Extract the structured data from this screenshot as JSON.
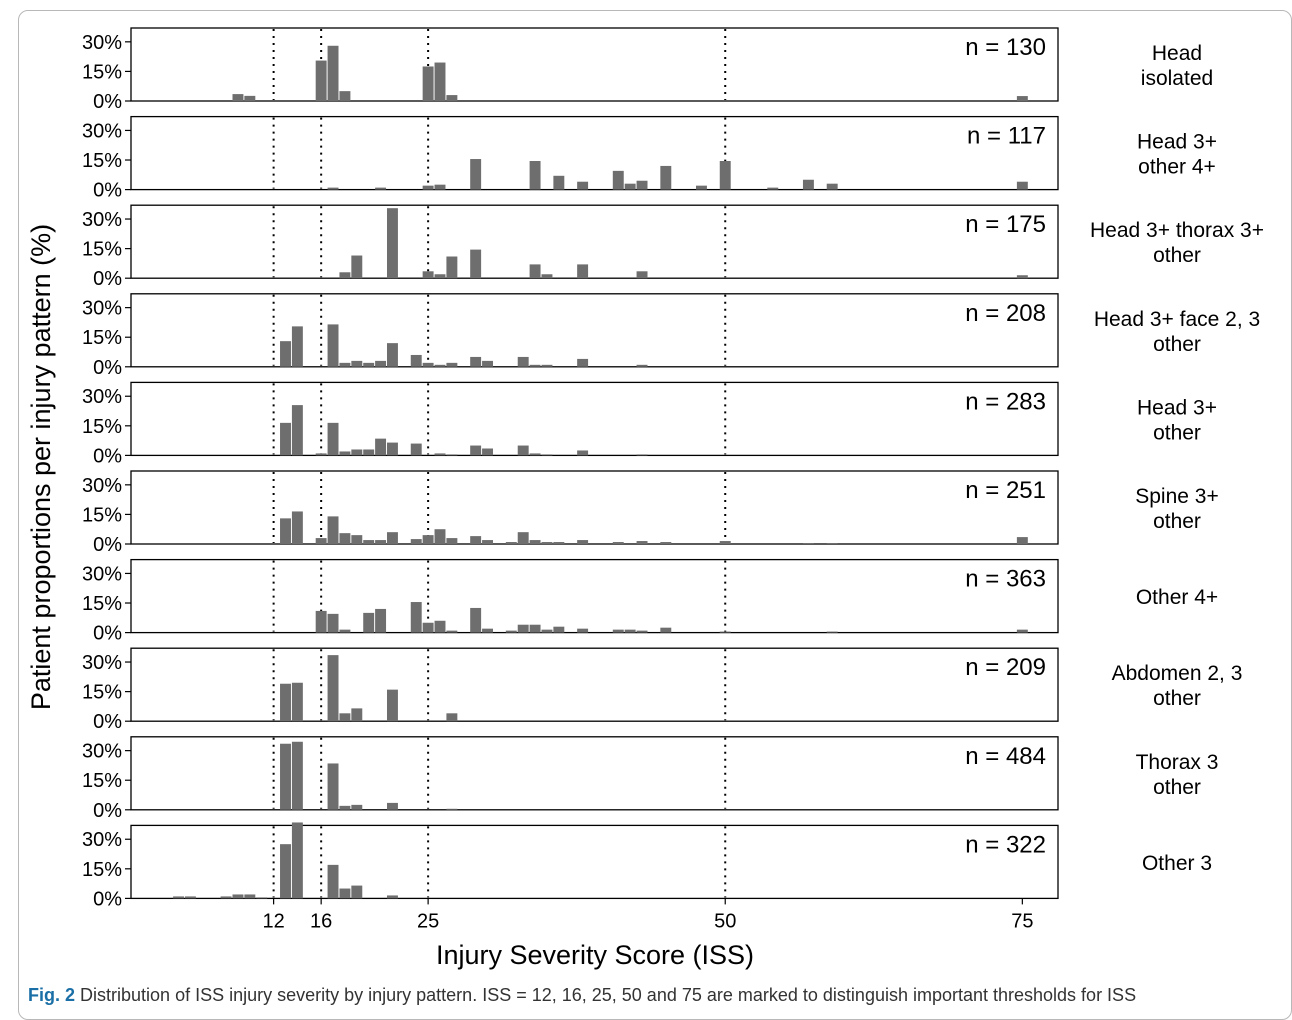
{
  "caption": {
    "label": "Fig. 2",
    "text": "Distribution of ISS injury severity by injury pattern. ISS = 12, 16, 25, 50 and 75 are marked to distinguish important thresholds for ISS"
  },
  "chart_data": {
    "type": "bar",
    "xlabel": "Injury Severity Score (ISS)",
    "ylabel": "Patient proportions per injury pattern (%)",
    "xlim": [
      0,
      78
    ],
    "ylim": [
      0,
      36
    ],
    "x_ticks": [
      12,
      16,
      25,
      50,
      75
    ],
    "y_ticks": [
      "0%",
      "15%",
      "30%"
    ],
    "y_tick_values": [
      0,
      15,
      30
    ],
    "threshold_lines": [
      12,
      16,
      25,
      50
    ],
    "bar_color": "#6e6e6e",
    "panels": [
      {
        "label_lines": [
          "Head",
          "isolated"
        ],
        "n_label": "n = 130",
        "bars": [
          [
            9,
            3.5
          ],
          [
            10,
            2.6
          ],
          [
            16,
            20.5
          ],
          [
            17,
            28
          ],
          [
            18,
            5
          ],
          [
            25,
            17.5
          ],
          [
            26,
            19.5
          ],
          [
            27,
            3
          ],
          [
            75,
            2.5
          ]
        ]
      },
      {
        "label_lines": [
          "Head 3+",
          "other 4+"
        ],
        "n_label": "n = 117",
        "bars": [
          [
            17,
            1
          ],
          [
            21,
            1
          ],
          [
            25,
            2
          ],
          [
            26,
            2.5
          ],
          [
            29,
            15.5
          ],
          [
            34,
            14.5
          ],
          [
            36,
            7
          ],
          [
            38,
            4
          ],
          [
            41,
            9.5
          ],
          [
            42,
            3
          ],
          [
            43,
            4.5
          ],
          [
            45,
            12
          ],
          [
            48,
            2
          ],
          [
            50,
            14.5
          ],
          [
            54,
            1
          ],
          [
            57,
            5
          ],
          [
            59,
            3
          ],
          [
            75,
            4
          ]
        ]
      },
      {
        "label_lines": [
          "Head 3+ thorax 3+",
          "other"
        ],
        "n_label": "n = 175",
        "bars": [
          [
            18,
            3
          ],
          [
            19,
            11.5
          ],
          [
            22,
            35.5
          ],
          [
            25,
            3.5
          ],
          [
            26,
            2
          ],
          [
            27,
            11
          ],
          [
            29,
            14.5
          ],
          [
            34,
            7
          ],
          [
            35,
            2
          ],
          [
            38,
            7
          ],
          [
            43,
            3.5
          ],
          [
            75,
            1.5
          ]
        ]
      },
      {
        "label_lines": [
          "Head 3+ face 2, 3",
          "other"
        ],
        "n_label": "n = 208",
        "bars": [
          [
            13,
            13
          ],
          [
            14,
            20.5
          ],
          [
            17,
            21.5
          ],
          [
            18,
            2
          ],
          [
            19,
            3
          ],
          [
            20,
            2
          ],
          [
            21,
            3
          ],
          [
            22,
            12
          ],
          [
            24,
            6
          ],
          [
            25,
            2
          ],
          [
            26,
            1
          ],
          [
            27,
            2
          ],
          [
            29,
            5
          ],
          [
            30,
            3
          ],
          [
            33,
            5
          ],
          [
            34,
            1
          ],
          [
            35,
            1
          ],
          [
            38,
            4
          ],
          [
            43,
            1
          ]
        ]
      },
      {
        "label_lines": [
          "Head 3+",
          "other"
        ],
        "n_label": "n = 283",
        "bars": [
          [
            13,
            16.5
          ],
          [
            14,
            25.5
          ],
          [
            16,
            1
          ],
          [
            17,
            16.5
          ],
          [
            18,
            2
          ],
          [
            19,
            3
          ],
          [
            20,
            3
          ],
          [
            21,
            8.5
          ],
          [
            22,
            6.5
          ],
          [
            24,
            6
          ],
          [
            26,
            1
          ],
          [
            27,
            0.5
          ],
          [
            29,
            5
          ],
          [
            30,
            3.5
          ],
          [
            33,
            5
          ],
          [
            34,
            1
          ],
          [
            35,
            0.5
          ],
          [
            38,
            2.5
          ],
          [
            43,
            0.5
          ]
        ]
      },
      {
        "label_lines": [
          "Spine 3+",
          "other"
        ],
        "n_label": "n = 251",
        "bars": [
          [
            13,
            13
          ],
          [
            14,
            16.5
          ],
          [
            16,
            3
          ],
          [
            17,
            14
          ],
          [
            18,
            5.5
          ],
          [
            19,
            4.5
          ],
          [
            20,
            2
          ],
          [
            21,
            2
          ],
          [
            22,
            6
          ],
          [
            24,
            2.5
          ],
          [
            25,
            4.5
          ],
          [
            26,
            7.5
          ],
          [
            27,
            3
          ],
          [
            29,
            4
          ],
          [
            30,
            2
          ],
          [
            32,
            1
          ],
          [
            33,
            6
          ],
          [
            34,
            2
          ],
          [
            35,
            1
          ],
          [
            36,
            1
          ],
          [
            38,
            2
          ],
          [
            41,
            1
          ],
          [
            43,
            1.5
          ],
          [
            45,
            1
          ],
          [
            50,
            1.5
          ],
          [
            57,
            0.5
          ],
          [
            59,
            0.5
          ],
          [
            75,
            3.5
          ]
        ]
      },
      {
        "label_lines": [
          "Other 4+"
        ],
        "n_label": "n = 363",
        "bars": [
          [
            16,
            11
          ],
          [
            17,
            9.5
          ],
          [
            18,
            1.5
          ],
          [
            20,
            10
          ],
          [
            21,
            12
          ],
          [
            24,
            15.5
          ],
          [
            25,
            5
          ],
          [
            26,
            6
          ],
          [
            27,
            1
          ],
          [
            29,
            12.5
          ],
          [
            30,
            2
          ],
          [
            32,
            1
          ],
          [
            33,
            4
          ],
          [
            34,
            4
          ],
          [
            35,
            1.5
          ],
          [
            36,
            3
          ],
          [
            38,
            2
          ],
          [
            41,
            1.5
          ],
          [
            42,
            1.5
          ],
          [
            43,
            1
          ],
          [
            45,
            2.5
          ],
          [
            50,
            0.5
          ],
          [
            59,
            0.5
          ],
          [
            75,
            1.5
          ]
        ]
      },
      {
        "label_lines": [
          "Abdomen 2, 3",
          "other"
        ],
        "n_label": "n = 209",
        "bars": [
          [
            13,
            19
          ],
          [
            14,
            19.5
          ],
          [
            17,
            33.5
          ],
          [
            18,
            4
          ],
          [
            19,
            6.5
          ],
          [
            22,
            16
          ],
          [
            27,
            4
          ]
        ]
      },
      {
        "label_lines": [
          "Thorax 3",
          "other"
        ],
        "n_label": "n = 484",
        "bars": [
          [
            13,
            33.5
          ],
          [
            14,
            34.5
          ],
          [
            17,
            23.5
          ],
          [
            18,
            2
          ],
          [
            19,
            2.5
          ],
          [
            22,
            3.5
          ],
          [
            27,
            0.5
          ]
        ]
      },
      {
        "label_lines": [
          "Other 3"
        ],
        "n_label": "n = 322",
        "bars": [
          [
            4,
            1
          ],
          [
            5,
            1
          ],
          [
            8,
            1
          ],
          [
            9,
            2
          ],
          [
            10,
            2
          ],
          [
            11,
            0.5
          ],
          [
            13,
            27.5
          ],
          [
            14,
            38.5
          ],
          [
            17,
            17
          ],
          [
            18,
            5
          ],
          [
            19,
            6.5
          ],
          [
            22,
            1.5
          ]
        ]
      }
    ]
  }
}
